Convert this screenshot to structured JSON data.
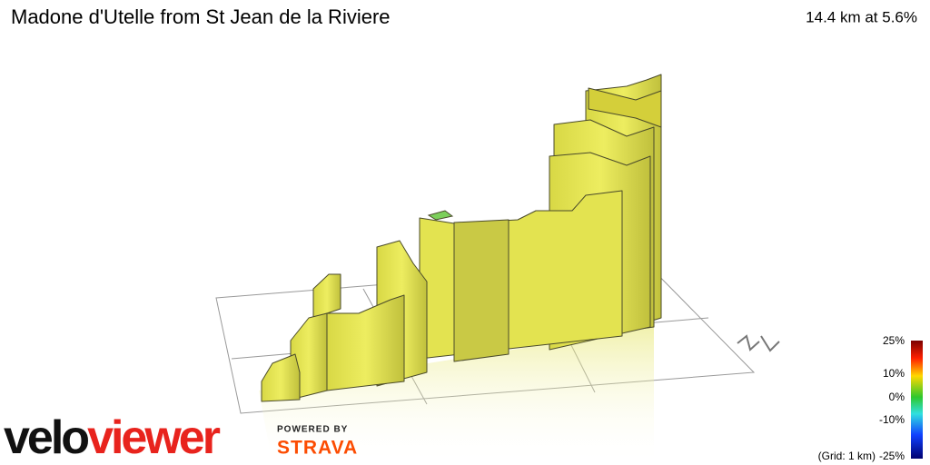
{
  "header": {
    "title": "Madone d'Utelle from St Jean de la Riviere",
    "summary": "14.4 km at 5.6%"
  },
  "legend": {
    "labels": [
      "25%",
      "10%",
      "0%",
      "-10%",
      "-25%"
    ],
    "grid_note": "(Grid: 1 km)"
  },
  "branding": {
    "logo_part1": "velo",
    "logo_part2": "viewer",
    "powered_by": "POWERED BY",
    "partner": "STRAVA"
  }
}
